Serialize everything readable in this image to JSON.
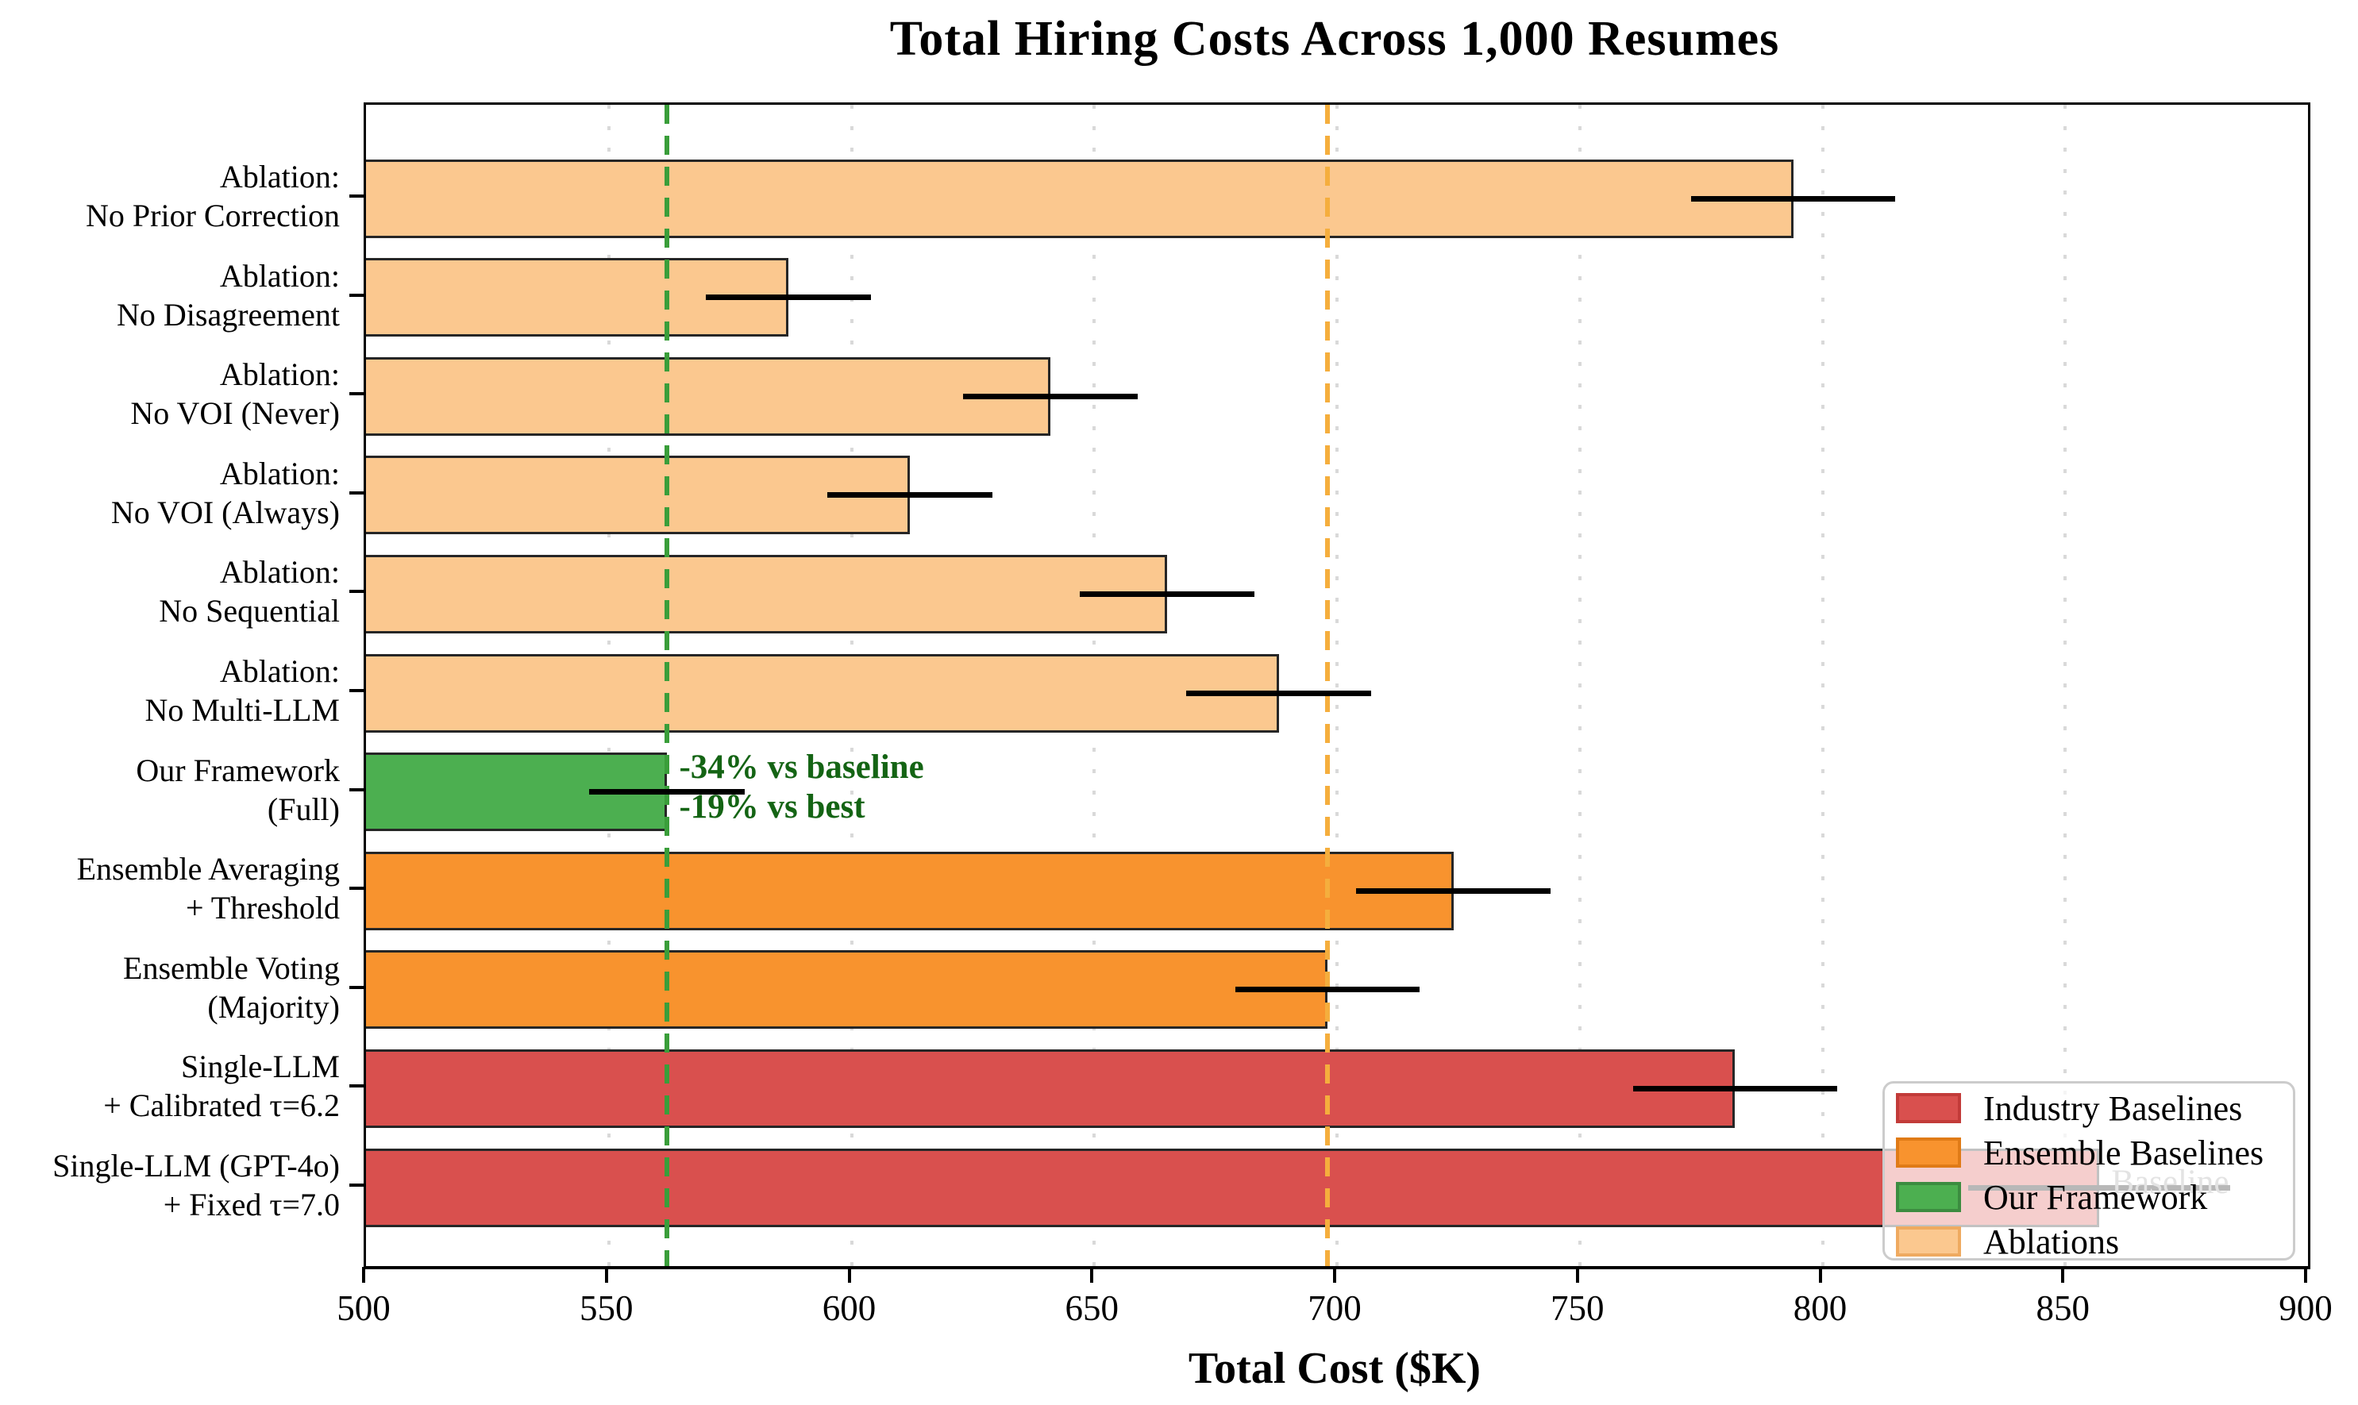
{
  "title": "Total Hiring Costs Across 1,000 Resumes",
  "xlabel": "Total Cost ($K)",
  "chart_data": {
    "type": "bar",
    "orientation": "horizontal",
    "title": "Total Hiring Costs Across 1,000 Resumes",
    "xlabel": "Total Cost ($K)",
    "xlim": [
      500,
      900
    ],
    "xticks": [
      500,
      550,
      600,
      650,
      700,
      750,
      800,
      850,
      900
    ],
    "grid": "vertical-dotted-gray",
    "rows": [
      {
        "label": [
          "Ablation:",
          "No Prior Correction"
        ],
        "value": 794,
        "error": 21,
        "group": "ablation"
      },
      {
        "label": [
          "Ablation:",
          "No Disagreement"
        ],
        "value": 587,
        "error": 17,
        "group": "ablation"
      },
      {
        "label": [
          "Ablation:",
          "No VOI (Never)"
        ],
        "value": 641,
        "error": 18,
        "group": "ablation"
      },
      {
        "label": [
          "Ablation:",
          "No VOI (Always)"
        ],
        "value": 612,
        "error": 17,
        "group": "ablation"
      },
      {
        "label": [
          "Ablation:",
          "No Sequential"
        ],
        "value": 665,
        "error": 18,
        "group": "ablation"
      },
      {
        "label": [
          "Ablation:",
          "No Multi-LLM"
        ],
        "value": 688,
        "error": 19,
        "group": "ablation"
      },
      {
        "label": [
          "Our Framework",
          "(Full)"
        ],
        "value": 562,
        "error": 16,
        "group": "framework"
      },
      {
        "label": [
          "Ensemble Averaging",
          "+ Threshold"
        ],
        "value": 724,
        "error": 20,
        "group": "ensemble"
      },
      {
        "label": [
          "Ensemble Voting",
          "(Majority)"
        ],
        "value": 698,
        "error": 19,
        "group": "ensemble"
      },
      {
        "label": [
          "Single-LLM",
          "+ Calibrated τ=6.2"
        ],
        "value": 782,
        "error": 21,
        "group": "industry"
      },
      {
        "label": [
          "Single-LLM (GPT-4o)",
          "+ Fixed τ=7.0"
        ],
        "value": 857,
        "error": 27,
        "group": "industry"
      }
    ],
    "group_colors": {
      "industry": {
        "fill": "#D9504E",
        "edge": "#262626"
      },
      "ensemble": {
        "fill": "#F8932E",
        "edge": "#262626"
      },
      "framework": {
        "fill": "#4CAF50",
        "edge": "#262626"
      },
      "ablation": {
        "fill": "#FBC88F",
        "edge": "#262626"
      }
    },
    "reference_lines": [
      {
        "name": "our-framework-cost",
        "value": 562,
        "color": "#3A9E3A",
        "style": "dashed"
      },
      {
        "name": "best-baseline-cost",
        "value": 698,
        "color": "#F5AE3D",
        "style": "dashed"
      }
    ],
    "annotations": [
      {
        "name": "framework-savings",
        "lines": [
          "-34% vs baseline",
          "-19% vs best"
        ],
        "x_value": 565,
        "row_index": 6,
        "color": "#146414",
        "bold": true
      },
      {
        "name": "baseline-tag",
        "lines": [
          "Baseline"
        ],
        "x_value": 860,
        "row_index": 10,
        "color": "#9A9A9A",
        "bold": false
      }
    ]
  },
  "legend": {
    "items": [
      {
        "label": "Industry Baselines",
        "fill": "#D9504E",
        "edge": "#C23B39"
      },
      {
        "label": "Ensemble Baselines",
        "fill": "#F8932E",
        "edge": "#E07B17"
      },
      {
        "label": "Our Framework",
        "fill": "#4CAF50",
        "edge": "#3C8C40"
      },
      {
        "label": "Ablations",
        "fill": "#FBC88F",
        "edge": "#EFAA60"
      }
    ]
  }
}
